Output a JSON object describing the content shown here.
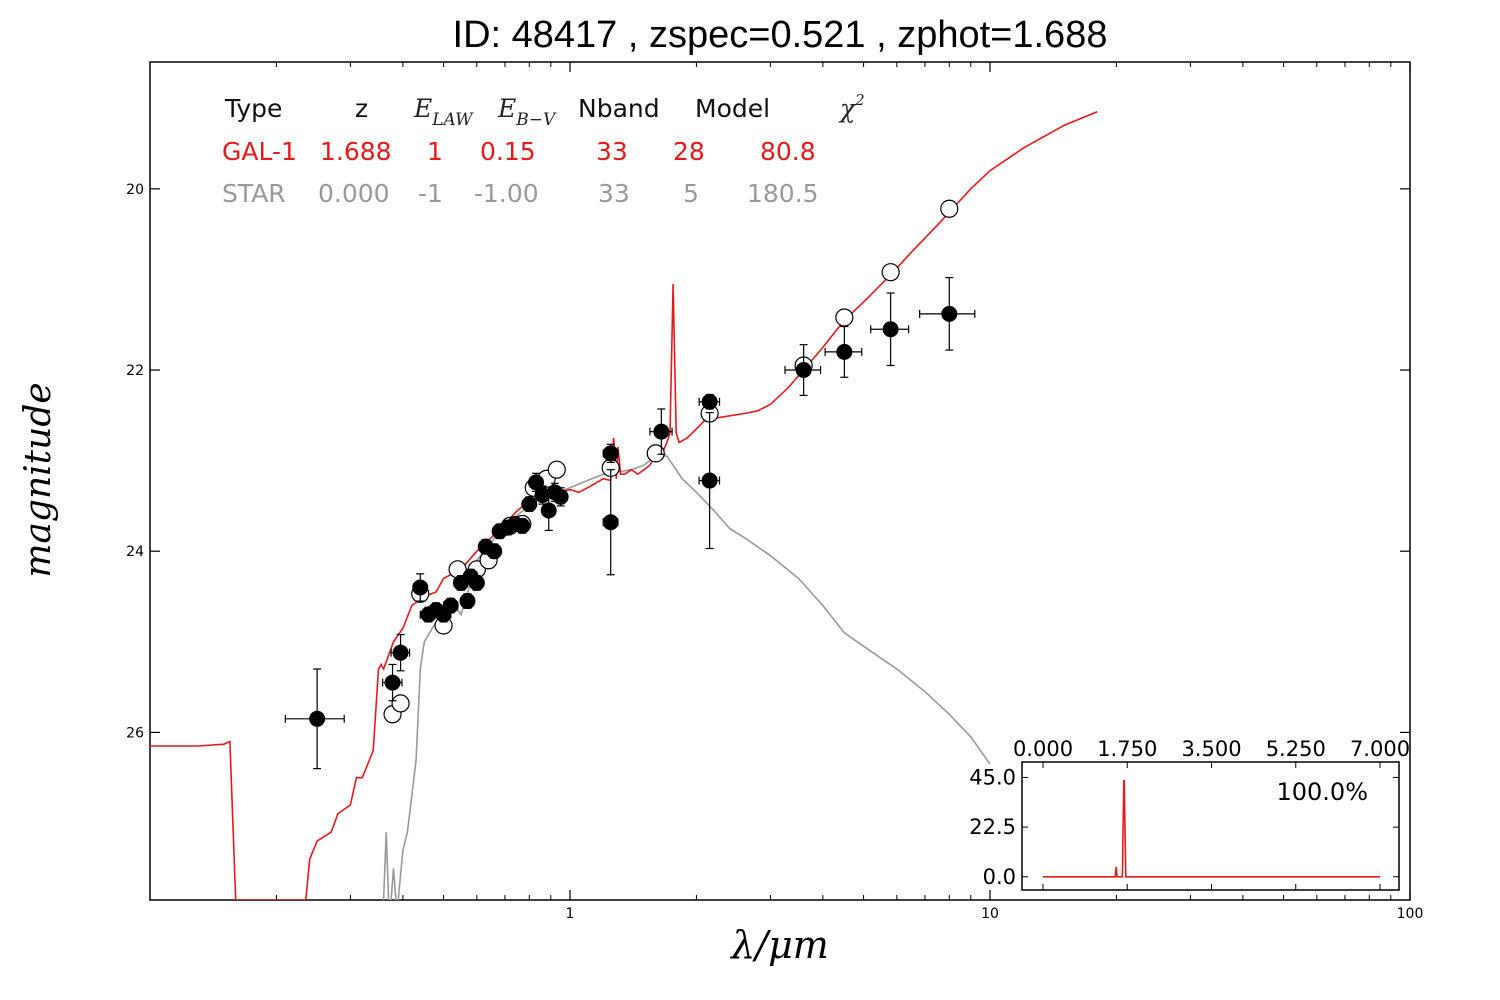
{
  "title": "ID:  48417 , zspec=0.521 , zphot=1.688",
  "chart_data": {
    "type": "scatter",
    "title": "ID:  48417 , zspec=0.521 , zphot=1.688",
    "xlabel": "λ/μm",
    "ylabel": "magnitude",
    "xscale": "log",
    "xlim": [
      0.1,
      100
    ],
    "ylim": [
      27.85,
      18.6
    ],
    "y_inverted": true,
    "x_ticks": [
      "1",
      "10",
      "100"
    ],
    "y_ticks": [
      "20",
      "22",
      "24",
      "26"
    ],
    "colors": {
      "gal": "#e41a1c",
      "star": "#999999",
      "points": "#000000"
    },
    "legend": {
      "headers": [
        "Type",
        "z",
        "E_LAW",
        "E_B−V",
        "Nband",
        "Model",
        "χ²"
      ],
      "header_symbols": {
        "e_law_base": "E",
        "e_law_sub": "LAW",
        "ebv_base": "E",
        "ebv_sub": "B−V",
        "chi_base": "χ",
        "chi_sup": "2"
      },
      "rows": [
        {
          "type": "GAL-1",
          "z": "1.688",
          "e_law": "1",
          "ebv": "0.15",
          "nband": "33",
          "model": "28",
          "chi2": "80.8",
          "color": "#e41a1c"
        },
        {
          "type": "STAR",
          "z": "0.000",
          "e_law": "-1",
          "ebv": "-1.00",
          "nband": "33",
          "model": "5",
          "chi2": "180.5",
          "color": "#999999"
        }
      ]
    },
    "galaxy_model": [
      [
        0.1,
        26.15
      ],
      [
        0.13,
        26.15
      ],
      [
        0.15,
        26.13
      ],
      [
        0.155,
        26.1
      ],
      [
        0.16,
        27.85
      ],
      [
        0.235,
        27.85
      ],
      [
        0.24,
        27.4
      ],
      [
        0.25,
        27.2
      ],
      [
        0.27,
        27.1
      ],
      [
        0.28,
        26.9
      ],
      [
        0.3,
        26.8
      ],
      [
        0.31,
        26.5
      ],
      [
        0.32,
        26.5
      ],
      [
        0.33,
        26.35
      ],
      [
        0.34,
        26.2
      ],
      [
        0.35,
        25.3
      ],
      [
        0.355,
        25.25
      ],
      [
        0.36,
        25.3
      ],
      [
        0.38,
        25.0
      ],
      [
        0.4,
        24.85
      ],
      [
        0.42,
        24.6
      ],
      [
        0.45,
        24.5
      ],
      [
        0.48,
        24.45
      ],
      [
        0.5,
        24.3
      ],
      [
        0.55,
        24.2
      ],
      [
        0.6,
        24.0
      ],
      [
        0.65,
        23.85
      ],
      [
        0.7,
        23.7
      ],
      [
        0.75,
        23.55
      ],
      [
        0.8,
        23.45
      ],
      [
        0.85,
        23.38
      ],
      [
        0.9,
        23.4
      ],
      [
        0.95,
        23.35
      ],
      [
        1.0,
        23.32
      ],
      [
        1.05,
        23.35
      ],
      [
        1.1,
        23.3
      ],
      [
        1.15,
        23.25
      ],
      [
        1.2,
        23.2
      ],
      [
        1.25,
        23.22
      ],
      [
        1.27,
        22.75
      ],
      [
        1.29,
        23.2
      ],
      [
        1.3,
        22.85
      ],
      [
        1.32,
        23.15
      ],
      [
        1.35,
        23.15
      ],
      [
        1.4,
        23.1
      ],
      [
        1.45,
        23.15
      ],
      [
        1.5,
        23.1
      ],
      [
        1.55,
        23.05
      ],
      [
        1.6,
        22.95
      ],
      [
        1.65,
        22.95
      ],
      [
        1.7,
        22.8
      ],
      [
        1.73,
        22.7
      ],
      [
        1.76,
        21.05
      ],
      [
        1.79,
        22.7
      ],
      [
        1.82,
        22.8
      ],
      [
        1.9,
        22.75
      ],
      [
        2.0,
        22.65
      ],
      [
        2.1,
        22.55
      ],
      [
        2.3,
        22.52
      ],
      [
        2.6,
        22.48
      ],
      [
        2.8,
        22.45
      ],
      [
        3.0,
        22.38
      ],
      [
        3.3,
        22.2
      ],
      [
        3.6,
        22.0
      ],
      [
        4.0,
        21.75
      ],
      [
        4.5,
        21.45
      ],
      [
        5.0,
        21.25
      ],
      [
        5.8,
        20.95
      ],
      [
        6.5,
        20.7
      ],
      [
        7.5,
        20.4
      ],
      [
        9.0,
        20.0
      ],
      [
        10.0,
        19.8
      ],
      [
        12.0,
        19.55
      ],
      [
        15.0,
        19.3
      ],
      [
        18.0,
        19.15
      ]
    ],
    "star_model": [
      [
        0.36,
        27.85
      ],
      [
        0.365,
        27.1
      ],
      [
        0.37,
        27.85
      ],
      [
        0.375,
        27.85
      ],
      [
        0.38,
        27.5
      ],
      [
        0.385,
        27.85
      ],
      [
        0.39,
        27.85
      ],
      [
        0.4,
        27.3
      ],
      [
        0.41,
        27.1
      ],
      [
        0.42,
        26.7
      ],
      [
        0.43,
        26.3
      ],
      [
        0.44,
        25.3
      ],
      [
        0.45,
        25.0
      ],
      [
        0.47,
        24.85
      ],
      [
        0.5,
        24.65
      ],
      [
        0.52,
        24.55
      ],
      [
        0.55,
        24.7
      ],
      [
        0.58,
        24.35
      ],
      [
        0.6,
        24.1
      ],
      [
        0.65,
        23.9
      ],
      [
        0.7,
        23.7
      ],
      [
        0.75,
        23.6
      ],
      [
        0.8,
        23.5
      ],
      [
        0.85,
        23.4
      ],
      [
        0.9,
        23.38
      ],
      [
        1.0,
        23.3
      ],
      [
        1.1,
        23.22
      ],
      [
        1.2,
        23.15
      ],
      [
        1.4,
        23.1
      ],
      [
        1.5,
        23.05
      ],
      [
        1.6,
        22.95
      ],
      [
        1.7,
        22.95
      ],
      [
        1.85,
        23.2
      ],
      [
        2.0,
        23.35
      ],
      [
        2.2,
        23.55
      ],
      [
        2.4,
        23.75
      ],
      [
        2.6,
        23.85
      ],
      [
        3.0,
        24.05
      ],
      [
        3.5,
        24.3
      ],
      [
        4.0,
        24.6
      ],
      [
        4.5,
        24.9
      ],
      [
        5.0,
        25.05
      ],
      [
        6.0,
        25.3
      ],
      [
        7.0,
        25.55
      ],
      [
        8.0,
        25.8
      ],
      [
        9.0,
        26.05
      ],
      [
        10.0,
        26.35
      ]
    ],
    "observed": [
      {
        "x": 0.25,
        "y": 25.85,
        "xerr_lo": 0.04,
        "xerr_hi": 0.04,
        "yerr": 0.55
      },
      {
        "x": 0.378,
        "y": 25.45,
        "xerr_lo": 0.02,
        "xerr_hi": 0.02,
        "yerr": 0.2
      },
      {
        "x": 0.395,
        "y": 25.12,
        "xerr_lo": 0.02,
        "xerr_hi": 0.02,
        "yerr": 0.2
      },
      {
        "x": 0.44,
        "y": 24.4,
        "xerr_lo": 0.01,
        "xerr_hi": 0.01,
        "yerr": 0.15
      },
      {
        "x": 0.46,
        "y": 24.7,
        "xerr_lo": 0.02,
        "xerr_hi": 0.02,
        "yerr": 0.08
      },
      {
        "x": 0.48,
        "y": 24.65,
        "xerr_lo": 0.02,
        "xerr_hi": 0.02,
        "yerr": 0.08
      },
      {
        "x": 0.5,
        "y": 24.7,
        "xerr_lo": 0.02,
        "xerr_hi": 0.02,
        "yerr": 0.08
      },
      {
        "x": 0.52,
        "y": 24.6,
        "xerr_lo": 0.02,
        "xerr_hi": 0.02,
        "yerr": 0.08
      },
      {
        "x": 0.55,
        "y": 24.35,
        "xerr_lo": 0.02,
        "xerr_hi": 0.02,
        "yerr": 0.08
      },
      {
        "x": 0.57,
        "y": 24.55,
        "xerr_lo": 0.02,
        "xerr_hi": 0.02,
        "yerr": 0.08
      },
      {
        "x": 0.58,
        "y": 24.28,
        "xerr_lo": 0.02,
        "xerr_hi": 0.02,
        "yerr": 0.08
      },
      {
        "x": 0.6,
        "y": 24.35,
        "xerr_lo": 0.02,
        "xerr_hi": 0.02,
        "yerr": 0.08
      },
      {
        "x": 0.63,
        "y": 23.95,
        "xerr_lo": 0.02,
        "xerr_hi": 0.02,
        "yerr": 0.08
      },
      {
        "x": 0.66,
        "y": 24.0,
        "xerr_lo": 0.02,
        "xerr_hi": 0.02,
        "yerr": 0.08
      },
      {
        "x": 0.68,
        "y": 23.78,
        "xerr_lo": 0.02,
        "xerr_hi": 0.02,
        "yerr": 0.08
      },
      {
        "x": 0.71,
        "y": 23.74,
        "xerr_lo": 0.02,
        "xerr_hi": 0.02,
        "yerr": 0.08
      },
      {
        "x": 0.74,
        "y": 23.7,
        "xerr_lo": 0.02,
        "xerr_hi": 0.02,
        "yerr": 0.08
      },
      {
        "x": 0.77,
        "y": 23.72,
        "xerr_lo": 0.02,
        "xerr_hi": 0.02,
        "yerr": 0.08
      },
      {
        "x": 0.8,
        "y": 23.48,
        "xerr_lo": 0.02,
        "xerr_hi": 0.02,
        "yerr": 0.08
      },
      {
        "x": 0.83,
        "y": 23.24,
        "xerr_lo": 0.02,
        "xerr_hi": 0.02,
        "yerr": 0.1
      },
      {
        "x": 0.86,
        "y": 23.38,
        "xerr_lo": 0.02,
        "xerr_hi": 0.02,
        "yerr": 0.1
      },
      {
        "x": 0.89,
        "y": 23.55,
        "xerr_lo": 0.02,
        "xerr_hi": 0.02,
        "yerr": 0.22
      },
      {
        "x": 0.92,
        "y": 23.35,
        "xerr_lo": 0.02,
        "xerr_hi": 0.02,
        "yerr": 0.1
      },
      {
        "x": 0.95,
        "y": 23.4,
        "xerr_lo": 0.02,
        "xerr_hi": 0.02,
        "yerr": 0.1
      },
      {
        "x": 1.25,
        "y": 22.92,
        "xerr_lo": 0.05,
        "xerr_hi": 0.05,
        "yerr": 0.1
      },
      {
        "x": 1.25,
        "y": 23.68,
        "xerr_lo": 0.05,
        "xerr_hi": 0.05,
        "yerr": 0.58
      },
      {
        "x": 1.65,
        "y": 22.68,
        "xerr_lo": 0.1,
        "xerr_hi": 0.1,
        "yerr": 0.25
      },
      {
        "x": 2.15,
        "y": 22.35,
        "xerr_lo": 0.12,
        "xerr_hi": 0.12,
        "yerr": 0.08
      },
      {
        "x": 2.15,
        "y": 23.22,
        "xerr_lo": 0.12,
        "xerr_hi": 0.12,
        "yerr": 0.75
      },
      {
        "x": 3.6,
        "y": 22.0,
        "xerr_lo": 0.35,
        "xerr_hi": 0.35,
        "yerr": 0.28
      },
      {
        "x": 4.5,
        "y": 21.8,
        "xerr_lo": 0.45,
        "xerr_hi": 0.45,
        "yerr": 0.28
      },
      {
        "x": 5.8,
        "y": 21.55,
        "xerr_lo": 0.6,
        "xerr_hi": 0.6,
        "yerr": 0.4
      },
      {
        "x": 8.0,
        "y": 21.38,
        "xerr_lo": 1.2,
        "xerr_hi": 1.2,
        "yerr": 0.4
      }
    ],
    "model_mags": [
      {
        "x": 0.378,
        "y": 25.8
      },
      {
        "x": 0.395,
        "y": 25.68
      },
      {
        "x": 0.44,
        "y": 24.47
      },
      {
        "x": 0.5,
        "y": 24.82
      },
      {
        "x": 0.54,
        "y": 24.2
      },
      {
        "x": 0.6,
        "y": 24.2
      },
      {
        "x": 0.64,
        "y": 24.1
      },
      {
        "x": 0.72,
        "y": 23.72
      },
      {
        "x": 0.77,
        "y": 23.7
      },
      {
        "x": 0.82,
        "y": 23.3
      },
      {
        "x": 0.88,
        "y": 23.2
      },
      {
        "x": 0.93,
        "y": 23.1
      },
      {
        "x": 1.25,
        "y": 23.08
      },
      {
        "x": 1.6,
        "y": 22.92
      },
      {
        "x": 2.15,
        "y": 22.48
      },
      {
        "x": 3.6,
        "y": 21.95
      },
      {
        "x": 4.5,
        "y": 21.42
      },
      {
        "x": 5.8,
        "y": 20.92
      },
      {
        "x": 8.0,
        "y": 20.22
      }
    ],
    "inset": {
      "type": "line",
      "x_ticks": [
        "0.000",
        "1.750",
        "3.500",
        "5.250",
        "7.000"
      ],
      "y_ticks": [
        "0.0",
        "22.5",
        "45.0"
      ],
      "xlim": [
        0,
        7
      ],
      "ylim": [
        -6,
        52
      ],
      "label": "100.0%",
      "pdz": [
        [
          0,
          0
        ],
        [
          1.5,
          0
        ],
        [
          1.52,
          4.5
        ],
        [
          1.54,
          0
        ],
        [
          1.6,
          0
        ],
        [
          1.65,
          0
        ],
        [
          1.668,
          28
        ],
        [
          1.678,
          43.5
        ],
        [
          1.688,
          43.5
        ],
        [
          1.7,
          28
        ],
        [
          1.72,
          0
        ],
        [
          7,
          0
        ]
      ]
    }
  }
}
